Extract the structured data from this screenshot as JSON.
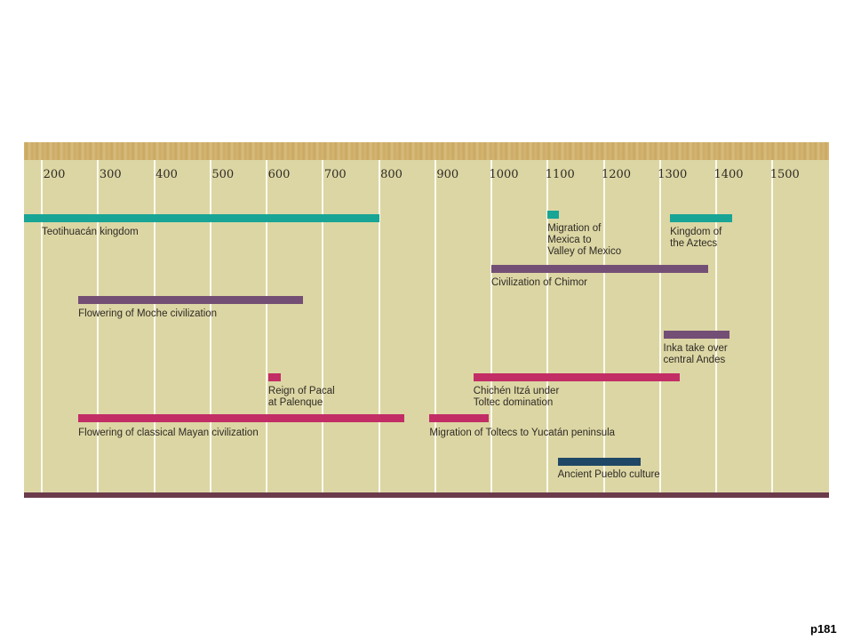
{
  "timeline": {
    "axis_ticks": [
      "200",
      "300",
      "400",
      "500",
      "600",
      "700",
      "800",
      "900",
      "1000",
      "1100",
      "1200",
      "1300",
      "1400",
      "1500"
    ],
    "colors": {
      "background": "#dcd6a4",
      "gridline": "#fbfaf0",
      "teal": "#18a596",
      "purple": "#744f75",
      "magenta": "#c22d66",
      "navy": "#1f4766",
      "bottom_rule": "#6b3b4c"
    },
    "events": [
      {
        "label": "Teotihuacán kingdom",
        "start": 150,
        "end": 800,
        "color": "teal"
      },
      {
        "label": "Migration of\nMexica to\nValley of Mexico",
        "start": 1100,
        "end": 1120,
        "color": "teal"
      },
      {
        "label": "Kingdom of\nthe Aztecs",
        "start": 1318,
        "end": 1428,
        "color": "teal"
      },
      {
        "label": "Civilization of Chimor",
        "start": 1000,
        "end": 1385,
        "color": "purple"
      },
      {
        "label": "Flowering of Moche civilization",
        "start": 265,
        "end": 665,
        "color": "purple"
      },
      {
        "label": "Inka take over\ncentral Andes",
        "start": 1306,
        "end": 1423,
        "color": "purple"
      },
      {
        "label": "Reign of Pacal\nat Palenque",
        "start": 603,
        "end": 625,
        "color": "magenta"
      },
      {
        "label": "Chichén Itzá under\nToltec domination",
        "start": 968,
        "end": 1335,
        "color": "magenta"
      },
      {
        "label": "Flowering of classical Mayan civilization",
        "start": 265,
        "end": 845,
        "color": "magenta"
      },
      {
        "label": "Migration of Toltecs to Yucatán peninsula",
        "start": 890,
        "end": 995,
        "color": "magenta"
      },
      {
        "label": "Ancient Pueblo culture",
        "start": 1118,
        "end": 1265,
        "color": "navy"
      }
    ]
  },
  "page": {
    "number": "p181"
  }
}
